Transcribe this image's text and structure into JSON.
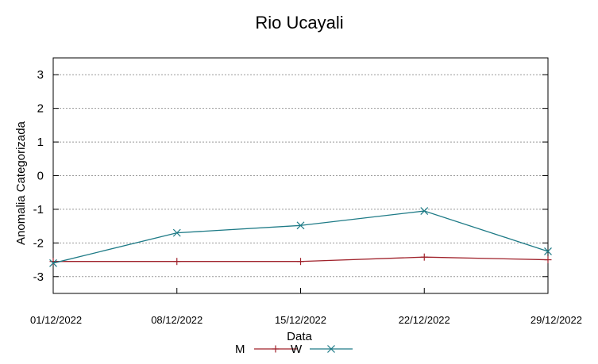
{
  "chart_data": {
    "type": "line",
    "title": "Rio Ucayali",
    "xlabel": "Data",
    "ylabel": "Anomalia Categorizada",
    "x": [
      "01/12/2022",
      "08/12/2022",
      "15/12/2022",
      "22/12/2022",
      "29/12/2022"
    ],
    "ylim": [
      -3.5,
      3.5
    ],
    "yticks": [
      -3,
      -2,
      -1,
      0,
      1,
      2,
      3
    ],
    "grid": true,
    "legend_position": "bottom",
    "series": [
      {
        "name": "M",
        "values": [
          -2.55,
          -2.55,
          -2.55,
          -2.42,
          -2.5
        ],
        "color": "#a0222b",
        "marker": "plus"
      },
      {
        "name": "W",
        "values": [
          -2.6,
          -1.7,
          -1.48,
          -1.05,
          -2.25
        ],
        "color": "#1d7a86",
        "marker": "cross"
      }
    ]
  }
}
